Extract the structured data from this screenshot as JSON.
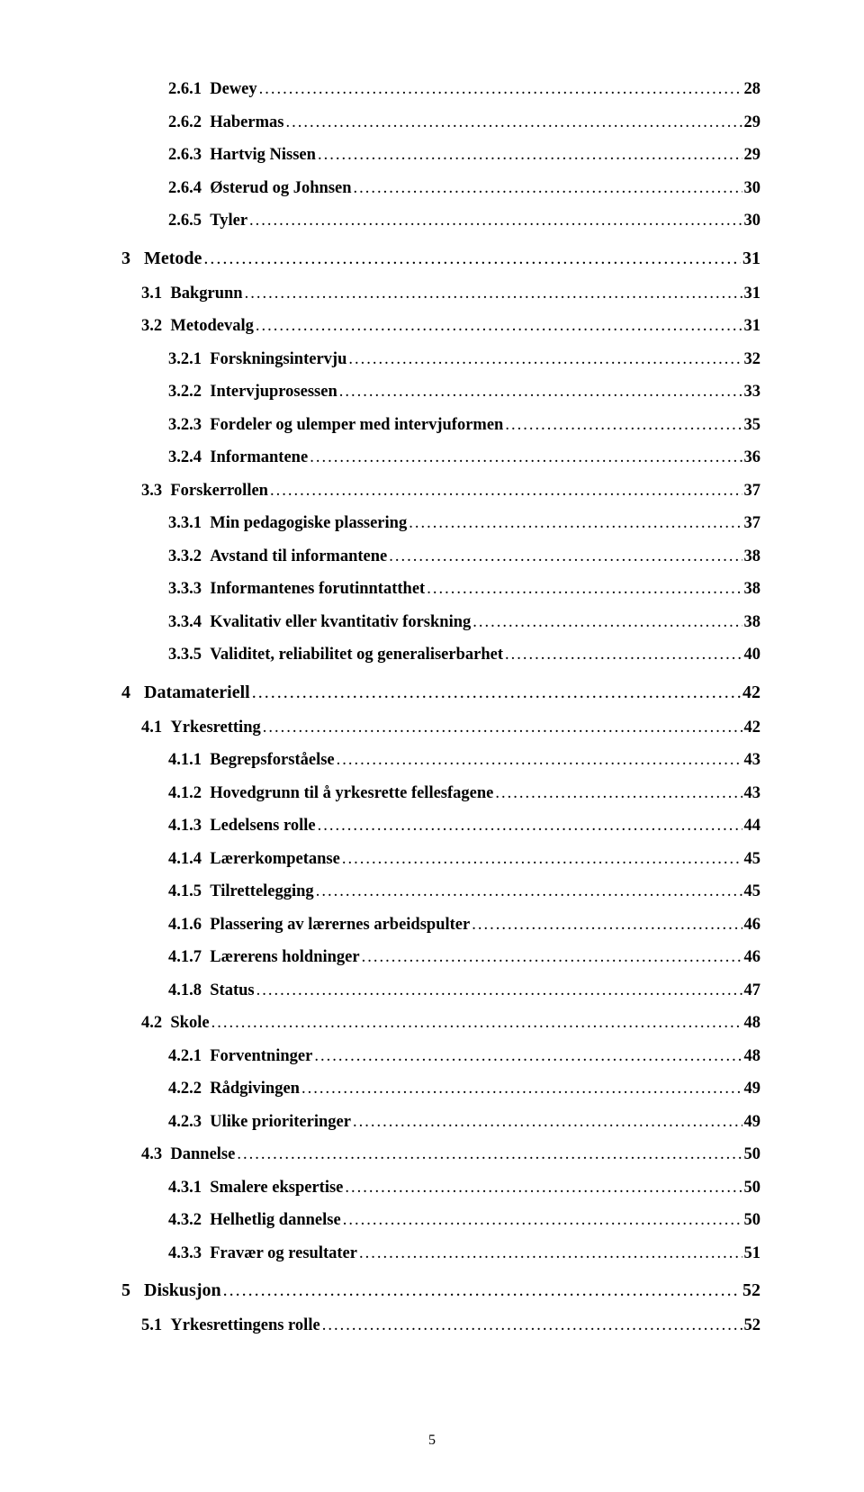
{
  "footer_page_number": "5",
  "dot_fill": "....................................................................................................................................................................................................................................",
  "toc": [
    {
      "level": 3,
      "num": "2.6.1",
      "title": "Dewey",
      "page": "28"
    },
    {
      "level": 3,
      "num": "2.6.2",
      "title": "Habermas",
      "page": "29"
    },
    {
      "level": 3,
      "num": "2.6.3",
      "title": "Hartvig Nissen",
      "page": "29"
    },
    {
      "level": 3,
      "num": "2.6.4",
      "title": "Østerud og Johnsen",
      "page": "30"
    },
    {
      "level": 3,
      "num": "2.6.5",
      "title": "Tyler",
      "page": "30"
    },
    {
      "level": 1,
      "num": "3",
      "title": "Metode",
      "page": "31"
    },
    {
      "level": 2,
      "num": "3.1",
      "title": "Bakgrunn",
      "page": "31"
    },
    {
      "level": 2,
      "num": "3.2",
      "title": "Metodevalg",
      "page": "31"
    },
    {
      "level": 3,
      "num": "3.2.1",
      "title": "Forskningsintervju",
      "page": "32"
    },
    {
      "level": 3,
      "num": "3.2.2",
      "title": "Intervjuprosessen",
      "page": "33"
    },
    {
      "level": 3,
      "num": "3.2.3",
      "title": "Fordeler og ulemper med intervjuformen",
      "page": "35"
    },
    {
      "level": 3,
      "num": "3.2.4",
      "title": "Informantene",
      "page": "36"
    },
    {
      "level": 2,
      "num": "3.3",
      "title": "Forskerrollen",
      "page": "37"
    },
    {
      "level": 3,
      "num": "3.3.1",
      "title": "Min pedagogiske plassering",
      "page": "37"
    },
    {
      "level": 3,
      "num": "3.3.2",
      "title": "Avstand til informantene",
      "page": "38"
    },
    {
      "level": 3,
      "num": "3.3.3",
      "title": "Informantenes forutinntatthet",
      "page": "38"
    },
    {
      "level": 3,
      "num": "3.3.4",
      "title": "Kvalitativ eller kvantitativ forskning",
      "page": "38"
    },
    {
      "level": 3,
      "num": "3.3.5",
      "title": "Validitet, reliabilitet og generaliserbarhet",
      "page": "40"
    },
    {
      "level": 1,
      "num": "4",
      "title": "Datamateriell",
      "page": "42"
    },
    {
      "level": 2,
      "num": "4.1",
      "title": "Yrkesretting",
      "page": "42"
    },
    {
      "level": 3,
      "num": "4.1.1",
      "title": "Begrepsforståelse",
      "page": "43"
    },
    {
      "level": 3,
      "num": "4.1.2",
      "title": "Hovedgrunn til å yrkesrette fellesfagene",
      "page": "43"
    },
    {
      "level": 3,
      "num": "4.1.3",
      "title": "Ledelsens rolle",
      "page": "44"
    },
    {
      "level": 3,
      "num": "4.1.4",
      "title": "Lærerkompetanse",
      "page": "45"
    },
    {
      "level": 3,
      "num": "4.1.5",
      "title": "Tilrettelegging",
      "page": "45"
    },
    {
      "level": 3,
      "num": "4.1.6",
      "title": "Plassering av lærernes arbeidspulter",
      "page": "46"
    },
    {
      "level": 3,
      "num": "4.1.7",
      "title": "Lærerens holdninger",
      "page": "46"
    },
    {
      "level": 3,
      "num": "4.1.8",
      "title": "Status",
      "page": "47"
    },
    {
      "level": 2,
      "num": "4.2",
      "title": "Skole",
      "page": "48"
    },
    {
      "level": 3,
      "num": "4.2.1",
      "title": "Forventninger",
      "page": "48"
    },
    {
      "level": 3,
      "num": "4.2.2",
      "title": "Rådgivingen",
      "page": "49"
    },
    {
      "level": 3,
      "num": "4.2.3",
      "title": "Ulike prioriteringer",
      "page": "49"
    },
    {
      "level": 2,
      "num": "4.3",
      "title": "Dannelse",
      "page": "50"
    },
    {
      "level": 3,
      "num": "4.3.1",
      "title": "Smalere ekspertise",
      "page": "50"
    },
    {
      "level": 3,
      "num": "4.3.2",
      "title": "Helhetlig dannelse",
      "page": "50"
    },
    {
      "level": 3,
      "num": "4.3.3",
      "title": "Fravær og resultater",
      "page": "51"
    },
    {
      "level": 1,
      "num": "5",
      "title": "Diskusjon",
      "page": "52"
    },
    {
      "level": 2,
      "num": "5.1",
      "title": "Yrkesrettingens rolle",
      "page": "52"
    }
  ]
}
